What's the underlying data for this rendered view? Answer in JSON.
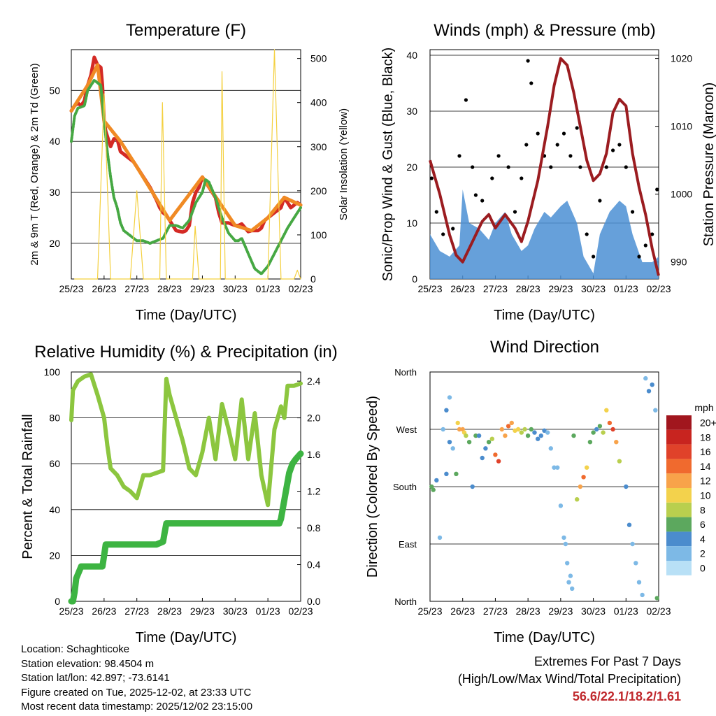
{
  "chart_data": [
    {
      "type": "line",
      "title": "Temperature (F)",
      "xlabel": "Time (Day/UTC)",
      "ylabel": "2m & 9m T (Red, Orange) & 2m Td (Green)",
      "y2label": "Solar Insolation (Yellow)",
      "x_ticks": [
        "25/23",
        "26/23",
        "27/23",
        "28/23",
        "29/23",
        "30/23",
        "01/23",
        "02/23"
      ],
      "xlim": [
        0,
        7
      ],
      "ylim": [
        13,
        58
      ],
      "y_ticks": [
        20,
        30,
        40,
        50
      ],
      "y2lim": [
        0,
        520
      ],
      "y2_ticks": [
        0,
        100,
        200,
        300,
        400,
        500
      ],
      "series": [
        {
          "name": "2m T",
          "color": "#d42a25",
          "x": [
            0,
            0.1,
            0.2,
            0.3,
            0.4,
            0.5,
            0.6,
            0.7,
            0.8,
            0.9,
            0.95,
            1.0,
            1.05,
            1.1,
            1.2,
            1.3,
            1.4,
            1.5,
            1.6,
            1.7,
            1.8,
            1.9,
            2.0,
            2.2,
            2.4,
            2.6,
            2.7,
            2.8,
            2.9,
            3.0,
            3.2,
            3.4,
            3.5,
            3.6,
            3.7,
            3.8,
            3.9,
            4.0,
            4.2,
            4.4,
            4.5,
            4.6,
            4.8,
            5.0,
            5.1,
            5.2,
            5.4,
            5.5,
            5.6,
            5.7,
            5.8,
            5.9,
            6.0,
            6.2,
            6.4,
            6.5,
            6.6,
            6.7,
            6.8,
            6.9,
            7.0
          ],
          "values": [
            46,
            47,
            47.5,
            47,
            48,
            51,
            53,
            56.5,
            55,
            54.5,
            51,
            44,
            42,
            41,
            39,
            40.5,
            40.5,
            38,
            37.5,
            37,
            36.5,
            36,
            35,
            33,
            31,
            28.5,
            27,
            26,
            25.5,
            24.5,
            22.5,
            22.2,
            22.5,
            23.5,
            28,
            30,
            31,
            33,
            31,
            29,
            26,
            24,
            24,
            23.5,
            23.5,
            23.8,
            22.3,
            22.5,
            22.5,
            22.5,
            23,
            24.5,
            25,
            26,
            27,
            29,
            28,
            27,
            27.5,
            28,
            27.5
          ]
        },
        {
          "name": "9m T",
          "color": "#f08a24",
          "x": [
            0,
            0.5,
            0.8,
            1.0,
            1.5,
            2.0,
            3.0,
            4.0,
            5.0,
            5.5,
            6.0,
            6.5,
            7.0
          ],
          "values": [
            46,
            51,
            55,
            44,
            40,
            35,
            24.5,
            33,
            23.5,
            22.5,
            25,
            29,
            27.5
          ]
        },
        {
          "name": "2m Td",
          "color": "#46a843",
          "x": [
            0,
            0.1,
            0.2,
            0.4,
            0.5,
            0.6,
            0.7,
            0.8,
            0.9,
            1.0,
            1.1,
            1.2,
            1.3,
            1.4,
            1.5,
            1.6,
            1.7,
            1.8,
            2.0,
            2.2,
            2.4,
            2.6,
            2.8,
            3.0,
            3.2,
            3.4,
            3.6,
            3.8,
            4.0,
            4.1,
            4.2,
            4.4,
            4.6,
            4.8,
            5.0,
            5.1,
            5.2,
            5.4,
            5.6,
            5.8,
            6.0,
            6.2,
            6.4,
            6.6,
            6.8,
            7.0
          ],
          "values": [
            40,
            45,
            46.5,
            47,
            50,
            51,
            52,
            51.5,
            51,
            44,
            38,
            33,
            29,
            27,
            24,
            22.5,
            22,
            21.5,
            20.5,
            20.5,
            20,
            20.5,
            21,
            23.5,
            23.5,
            23,
            24.5,
            28,
            30,
            32.5,
            32,
            29,
            25,
            22,
            20.5,
            20.5,
            21,
            18,
            15,
            14,
            15.5,
            18,
            20.5,
            23,
            25,
            27
          ]
        },
        {
          "name": "Solar Insolation",
          "color": "#f4d03f",
          "axis": "y2",
          "x": [
            0.1,
            0.3,
            0.6,
            0.8,
            1.0,
            1.2,
            1.4,
            1.6,
            1.8,
            2.0,
            2.2,
            2.4,
            2.55,
            2.62,
            2.7,
            2.78,
            2.9,
            3.2,
            3.4,
            3.5,
            3.55,
            3.62,
            3.7,
            3.78,
            3.9,
            4.2,
            4.4,
            4.5,
            4.55,
            4.6,
            4.7,
            4.8,
            4.9,
            5.2,
            5.4,
            5.5,
            5.6,
            5.7,
            5.8,
            6.0,
            6.2,
            6.4,
            6.5,
            6.6,
            6.7,
            6.8,
            6.9,
            7.0
          ],
          "values": [
            0,
            0,
            0,
            0,
            420,
            0,
            0,
            0,
            0,
            200,
            0,
            0,
            0,
            0,
            0,
            400,
            0,
            0,
            0,
            0,
            0,
            0,
            0,
            120,
            0,
            0,
            0,
            0,
            0,
            470,
            0,
            0,
            0,
            0,
            0,
            0,
            0,
            0,
            0,
            0,
            520,
            0,
            0,
            0,
            0,
            0,
            20,
            0
          ]
        }
      ]
    },
    {
      "type": "scatter",
      "title": "Winds (mph) & Pressure (mb)",
      "xlabel": "Time (Day/UTC)",
      "ylabel": "Sonic/Prop Wind & Gust (Blue, Black)",
      "y2label": "Station Pressure (Maroon)",
      "x_ticks": [
        "25/23",
        "26/23",
        "27/23",
        "28/23",
        "29/23",
        "30/23",
        "01/23",
        "02/23"
      ],
      "xlim": [
        0,
        7
      ],
      "ylim": [
        0,
        41
      ],
      "y_ticks": [
        0,
        10,
        20,
        30,
        40
      ],
      "y2lim": [
        987.5,
        1021.3
      ],
      "y2_ticks": [
        990,
        1000,
        1010,
        1020
      ],
      "series": [
        {
          "name": "Wind",
          "color": "#4b8fd4",
          "x": [
            0,
            0.3,
            0.6,
            0.9,
            1.0,
            1.2,
            1.5,
            1.8,
            2.0,
            2.3,
            2.5,
            2.8,
            3.0,
            3.2,
            3.5,
            3.7,
            4.0,
            4.2,
            4.5,
            4.7,
            4.9,
            5.0,
            5.2,
            5.5,
            5.8,
            6.0,
            6.2,
            6.5,
            6.8,
            7.0
          ],
          "values": [
            8,
            5,
            4,
            6,
            16,
            10,
            9,
            7,
            10,
            12,
            8,
            5,
            6,
            9,
            12,
            11,
            13,
            14,
            10,
            4,
            2,
            1,
            8,
            12,
            14,
            13,
            8,
            3,
            3,
            4
          ]
        },
        {
          "name": "Gust",
          "color": "#000000",
          "x": [
            0.05,
            0.2,
            0.4,
            0.7,
            0.9,
            1.1,
            1.3,
            1.4,
            1.6,
            1.9,
            2.1,
            2.4,
            2.6,
            2.8,
            2.95,
            3.0,
            3.1,
            3.3,
            3.5,
            3.7,
            3.9,
            4.1,
            4.3,
            4.5,
            4.6,
            4.8,
            5.0,
            5.2,
            5.4,
            5.6,
            5.8,
            6.0,
            6.2,
            6.4,
            6.6,
            6.8,
            6.95
          ],
          "values": [
            18,
            12,
            8,
            9,
            22,
            32,
            20,
            15,
            14,
            18,
            22,
            20,
            12,
            18,
            24,
            39,
            35,
            26,
            22,
            20,
            24,
            26,
            22,
            27,
            20,
            8,
            4,
            14,
            20,
            23,
            24,
            20,
            12,
            4,
            6,
            8,
            16
          ]
        },
        {
          "name": "Station Pressure",
          "color": "#9b1c20",
          "axis": "y2",
          "x": [
            0,
            0.3,
            0.6,
            0.8,
            1.0,
            1.3,
            1.6,
            1.8,
            2.0,
            2.3,
            2.6,
            2.8,
            3.0,
            3.3,
            3.6,
            3.8,
            4.0,
            4.2,
            4.4,
            4.6,
            4.8,
            5.0,
            5.2,
            5.4,
            5.6,
            5.8,
            6.0,
            6.2,
            6.4,
            6.6,
            6.8,
            6.9,
            7.0
          ],
          "values": [
            1005,
            1000,
            994,
            991,
            990,
            993,
            996,
            997,
            995,
            997,
            995,
            993,
            996,
            1002,
            1010,
            1016,
            1020,
            1019,
            1015,
            1010,
            1005,
            1002,
            1003,
            1006,
            1012,
            1014,
            1013,
            1006,
            1001,
            997,
            992,
            990,
            988
          ]
        }
      ]
    },
    {
      "type": "line",
      "title": "Relative Humidity (%) & Precipitation (in)",
      "xlabel": "Time (Day/UTC)",
      "ylabel": "Percent & Total Rainfall",
      "x_ticks": [
        "25/23",
        "26/23",
        "27/23",
        "28/23",
        "29/23",
        "30/23",
        "01/23",
        "02/23"
      ],
      "xlim": [
        0,
        7
      ],
      "ylim": [
        0,
        100
      ],
      "y_ticks": [
        0,
        20,
        40,
        60,
        80,
        100
      ],
      "y2lim": [
        0,
        2.5
      ],
      "y2_ticks": [
        "0.0",
        "0.4",
        "0.8",
        "1.2",
        "1.6",
        "2.0",
        "2.4"
      ],
      "series": [
        {
          "name": "Relative Humidity",
          "color": "#8cc63f",
          "x": [
            0,
            0.05,
            0.2,
            0.4,
            0.6,
            0.8,
            1.0,
            1.1,
            1.2,
            1.4,
            1.6,
            1.8,
            2.0,
            2.2,
            2.4,
            2.6,
            2.8,
            2.9,
            3.0,
            3.2,
            3.4,
            3.6,
            3.8,
            4.0,
            4.2,
            4.4,
            4.6,
            4.8,
            5.0,
            5.2,
            5.4,
            5.6,
            5.8,
            6.0,
            6.2,
            6.4,
            6.5,
            6.6,
            6.8,
            7.0
          ],
          "values": [
            79,
            92,
            96,
            98,
            99,
            90,
            80,
            68,
            58,
            55,
            50,
            48,
            45,
            55,
            55,
            56,
            57,
            97,
            90,
            80,
            70,
            58,
            55,
            65,
            80,
            62,
            86,
            75,
            62,
            88,
            62,
            82,
            55,
            42,
            75,
            85,
            80,
            94,
            94,
            95
          ]
        },
        {
          "name": "Total Precipitation",
          "color": "#3db442",
          "axis": "y2",
          "x": [
            0,
            0.05,
            0.1,
            0.15,
            0.3,
            0.8,
            0.95,
            1.0,
            1.05,
            1.5,
            2.0,
            2.6,
            2.8,
            2.85,
            2.9,
            3.5,
            4.0,
            4.5,
            5.0,
            5.5,
            6.0,
            6.35,
            6.4,
            6.45,
            6.55,
            6.65,
            6.75,
            6.85,
            7.0
          ],
          "values": [
            0,
            0,
            0.1,
            0.25,
            0.38,
            0.38,
            0.38,
            0.5,
            0.62,
            0.62,
            0.62,
            0.62,
            0.65,
            0.75,
            0.85,
            0.85,
            0.85,
            0.85,
            0.85,
            0.85,
            0.85,
            0.85,
            0.9,
            1.0,
            1.2,
            1.4,
            1.5,
            1.55,
            1.61
          ]
        }
      ]
    },
    {
      "type": "scatter",
      "title": "Wind Direction",
      "xlabel": "Time (Day/UTC)",
      "ylabel": "Direction (Colored By Speed)",
      "x_ticks": [
        "25/23",
        "26/23",
        "27/23",
        "28/23",
        "29/23",
        "30/23",
        "01/23",
        "02/23"
      ],
      "xlim": [
        0,
        7
      ],
      "y_categories": [
        "North",
        "East",
        "South",
        "West",
        "North"
      ],
      "ylim": [
        0,
        360
      ],
      "colorbar_title": "mph",
      "colorbar_labels": [
        "20+",
        "18",
        "16",
        "14",
        "12",
        "10",
        "8",
        "6",
        "4",
        "2",
        "0"
      ],
      "colorbar_colors": [
        "#a1161e",
        "#c8241f",
        "#e0422a",
        "#f06a2e",
        "#f8a34a",
        "#f3d24c",
        "#b9cf4e",
        "#5ca85e",
        "#4b8ccd",
        "#7db9e6",
        "#b8e0f6"
      ],
      "points": {
        "x": [
          0.05,
          0.1,
          0.2,
          0.3,
          0.4,
          0.5,
          0.5,
          0.6,
          0.6,
          0.7,
          0.8,
          0.85,
          0.9,
          1.0,
          1.05,
          1.1,
          1.2,
          1.3,
          1.4,
          1.5,
          1.6,
          1.7,
          1.8,
          1.9,
          2.0,
          2.1,
          2.2,
          2.3,
          2.4,
          2.5,
          2.6,
          2.7,
          2.8,
          2.9,
          3.0,
          3.1,
          3.2,
          3.3,
          3.4,
          3.5,
          3.6,
          3.7,
          3.8,
          3.9,
          4.0,
          4.1,
          4.15,
          4.2,
          4.25,
          4.3,
          4.35,
          4.4,
          4.5,
          4.6,
          4.7,
          4.8,
          4.9,
          5.0,
          5.1,
          5.2,
          5.3,
          5.4,
          5.5,
          5.6,
          5.7,
          5.8,
          6.0,
          6.1,
          6.2,
          6.3,
          6.4,
          6.5,
          6.6,
          6.7,
          6.8,
          6.9,
          6.95
        ],
        "dir": [
          180,
          175,
          190,
          100,
          270,
          300,
          200,
          320,
          250,
          240,
          200,
          280,
          270,
          270,
          265,
          260,
          250,
          180,
          260,
          260,
          225,
          240,
          250,
          255,
          230,
          220,
          270,
          260,
          275,
          280,
          268,
          270,
          265,
          270,
          260,
          270,
          265,
          255,
          260,
          268,
          265,
          240,
          210,
          210,
          150,
          100,
          90,
          60,
          30,
          40,
          20,
          260,
          160,
          180,
          195,
          210,
          250,
          265,
          270,
          275,
          265,
          300,
          280,
          270,
          250,
          220,
          180,
          120,
          90,
          60,
          30,
          10,
          350,
          330,
          340,
          300,
          5
        ],
        "speed": [
          5,
          6,
          4,
          2,
          1,
          3,
          4,
          2,
          3,
          2,
          6,
          10,
          12,
          11,
          9,
          7,
          5,
          4,
          5,
          4,
          3,
          4,
          6,
          8,
          14,
          16,
          12,
          12,
          13,
          11,
          9,
          10,
          8,
          7,
          6,
          5,
          4,
          4,
          3,
          3,
          2,
          2,
          1,
          2,
          1,
          2,
          1,
          1,
          2,
          2,
          1,
          6,
          7,
          11,
          13,
          9,
          6,
          5,
          4,
          6,
          8,
          10,
          14,
          16,
          12,
          8,
          4,
          3,
          2,
          2,
          1,
          1,
          2,
          3,
          4,
          2,
          5
        ]
      }
    }
  ],
  "info": {
    "location": "Location: Schaghticoke",
    "elevation": "Station elevation: 98.4504 m",
    "latlon": "Station lat/lon: 42.897; -73.6141",
    "created": "Figure created on Tue, 2025-12-02, at 23:33 UTC",
    "recent": "Most recent data timestamp: 2025/12/02 23:15:00"
  },
  "extremes": {
    "title": "Extremes For Past 7 Days",
    "subtitle": "(High/Low/Max Wind/Total Precipitation)",
    "values": "56.6/22.1/18.2/1.61"
  }
}
